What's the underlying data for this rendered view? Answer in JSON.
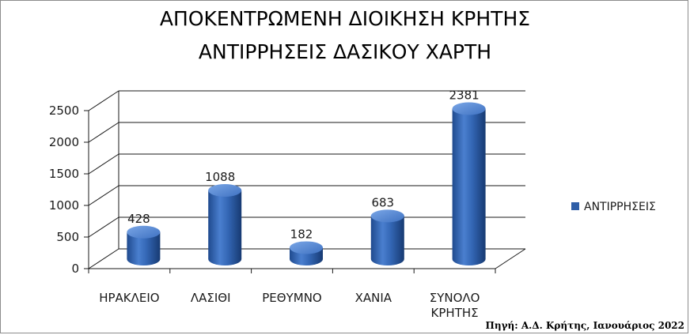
{
  "chart_data": {
    "type": "bar",
    "title_lines": [
      "ΑΠΟΚΕΝΤΡΩΜΕΝΗ ΔΙΟΙΚΗΣΗ ΚΡΗΤΗΣ",
      "ΑΝΤΙΡΡΗΣΕΙΣ ΔΑΣΙΚΟΥ ΧΑΡΤΗ"
    ],
    "categories": [
      [
        "ΗΡΑΚΛΕΙΟ"
      ],
      [
        "ΛΑΣΙΘΙ"
      ],
      [
        "ΡΕΘΥΜΝΟ"
      ],
      [
        "ΧΑΝΙΑ"
      ],
      [
        "ΣΥΝΟΛΟ",
        "ΚΡΗΤΗΣ"
      ]
    ],
    "series": [
      {
        "name": "ΑΝΤΙΡΡΗΣΕΙΣ",
        "values": [
          428,
          1088,
          182,
          683,
          2381
        ]
      }
    ],
    "data_labels": [
      "428",
      "1088",
      "182",
      "683",
      "2381"
    ],
    "yticks": [
      "0",
      "500",
      "1000",
      "1500",
      "2000",
      "2500"
    ],
    "ylim": [
      0,
      2500
    ],
    "grid": true,
    "legend_position": "right",
    "colors": {
      "bar": "#2f5ea7",
      "bar_light": "#6d9be0",
      "bar_dark": "#1b3f79",
      "grid": "#1a1a1a"
    },
    "source_note": "Πηγή: Α.Δ. Κρήτης, Ιανουάριος 2022"
  }
}
